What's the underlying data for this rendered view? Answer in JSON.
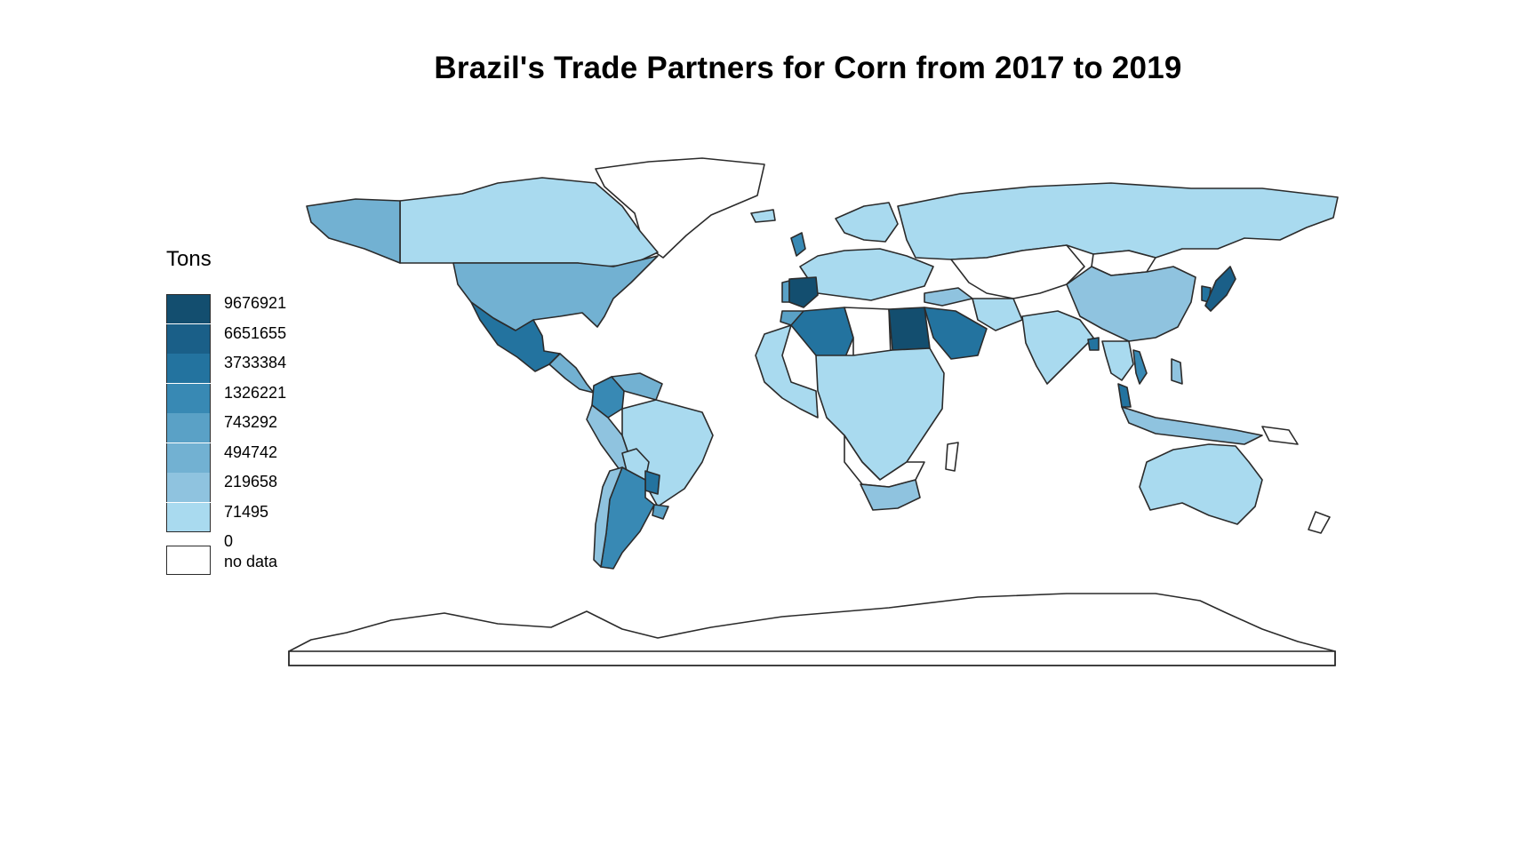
{
  "title": "Brazil's Trade Partners for Corn from 2017 to 2019",
  "legend": {
    "title": "Tons",
    "breaks": [
      "9676921",
      "6651655",
      "3733384",
      "1326221",
      "743292",
      "494742",
      "219658",
      "71495",
      "0"
    ],
    "bin_colors": [
      "#134e6f",
      "#1a5f88",
      "#23739f",
      "#3889b4",
      "#5aa1c6",
      "#72b1d2",
      "#8fc3df",
      "#a9daef"
    ],
    "no_data_label": "no data",
    "no_data_color": "#ffffff"
  },
  "chart_data": {
    "type": "choropleth",
    "title": "Brazil's Trade Partners for Corn from 2017 to 2019",
    "legend_title": "Tons",
    "legend_placement": "left",
    "value_bins": [
      {
        "bin": 1,
        "range": [
          0,
          71495
        ],
        "color": "#a9daef"
      },
      {
        "bin": 2,
        "range": [
          71495,
          219658
        ],
        "color": "#8fc3df"
      },
      {
        "bin": 3,
        "range": [
          219658,
          494742
        ],
        "color": "#72b1d2"
      },
      {
        "bin": 4,
        "range": [
          494742,
          743292
        ],
        "color": "#5aa1c6"
      },
      {
        "bin": 5,
        "range": [
          743292,
          1326221
        ],
        "color": "#3889b4"
      },
      {
        "bin": 6,
        "range": [
          1326221,
          3733384
        ],
        "color": "#23739f"
      },
      {
        "bin": 7,
        "range": [
          3733384,
          6651655
        ],
        "color": "#1a5f88"
      },
      {
        "bin": 8,
        "range": [
          6651655,
          9676921
        ],
        "color": "#134e6f"
      }
    ],
    "regions": [
      {
        "name": "Canada",
        "bin": 1
      },
      {
        "name": "Alaska",
        "bin": 3
      },
      {
        "name": "United States",
        "bin": 3
      },
      {
        "name": "Mexico",
        "bin": 6
      },
      {
        "name": "Central America",
        "bin": 3
      },
      {
        "name": "Colombia",
        "bin": 5
      },
      {
        "name": "Venezuela",
        "bin": 3
      },
      {
        "name": "Peru",
        "bin": 2
      },
      {
        "name": "Brazil",
        "bin": 1
      },
      {
        "name": "Argentina",
        "bin": 5
      },
      {
        "name": "Paraguay",
        "bin": 6
      },
      {
        "name": "Uruguay",
        "bin": 4
      },
      {
        "name": "Chile",
        "bin": 2
      },
      {
        "name": "Spain",
        "bin": 8
      },
      {
        "name": "Portugal",
        "bin": 4
      },
      {
        "name": "United Kingdom",
        "bin": 5
      },
      {
        "name": "Morocco",
        "bin": 4
      },
      {
        "name": "Algeria",
        "bin": 6
      },
      {
        "name": "Egypt",
        "bin": 8
      },
      {
        "name": "Saudi Arabia",
        "bin": 6
      },
      {
        "name": "Turkey",
        "bin": 2
      },
      {
        "name": "Russia",
        "bin": 1
      },
      {
        "name": "China",
        "bin": 2
      },
      {
        "name": "India",
        "bin": 1
      },
      {
        "name": "Bangladesh",
        "bin": 6
      },
      {
        "name": "Japan",
        "bin": 7
      },
      {
        "name": "South Korea",
        "bin": 6
      },
      {
        "name": "Vietnam",
        "bin": 5
      },
      {
        "name": "Malaysia",
        "bin": 6
      },
      {
        "name": "Indonesia",
        "bin": 2
      },
      {
        "name": "Australia",
        "bin": 1
      },
      {
        "name": "South Africa",
        "bin": 2
      }
    ]
  }
}
